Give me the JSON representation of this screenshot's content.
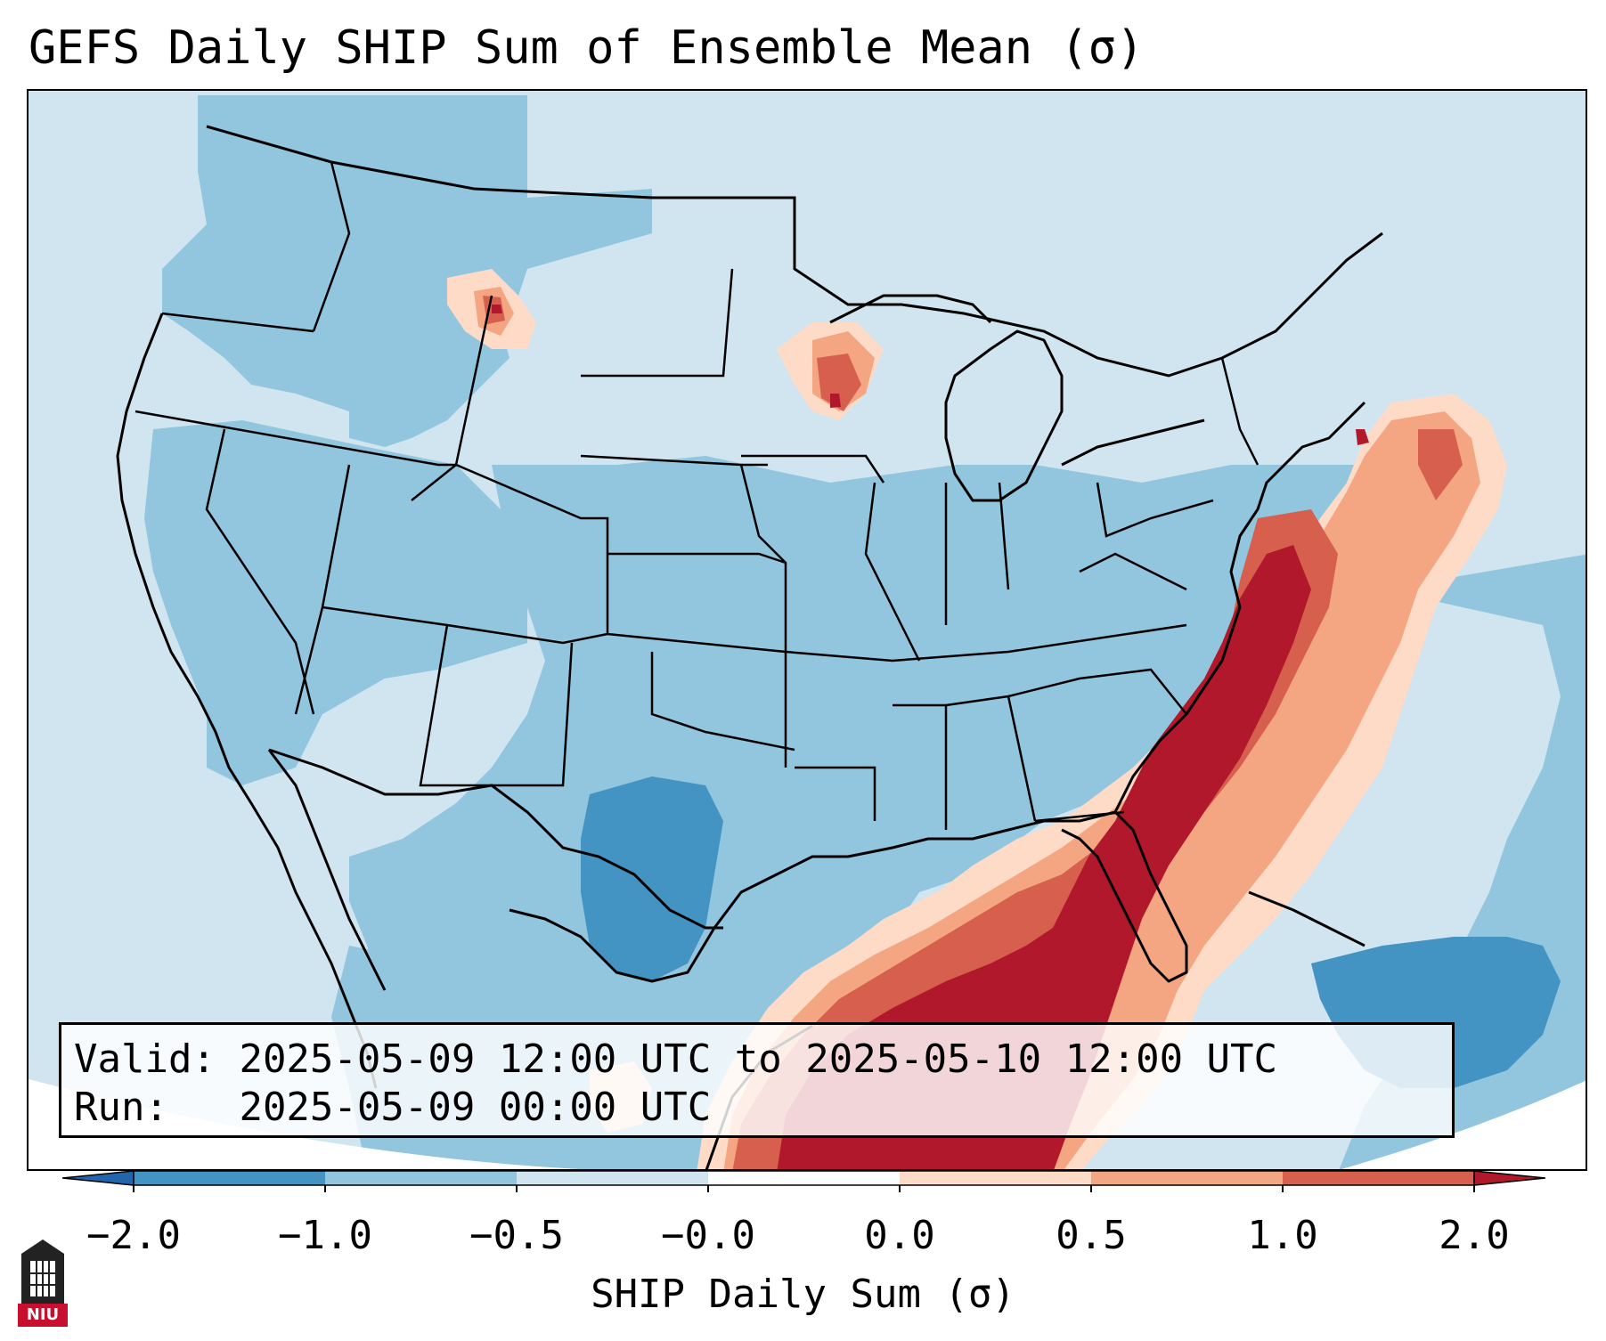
{
  "title": "GEFS Daily SHIP Sum of Ensemble Mean (σ)",
  "info": {
    "valid_label": "Valid:",
    "valid_value": "2025-05-09 12:00 UTC to 2025-05-10 12:00 UTC",
    "run_label": "Run:",
    "run_value": "2025-05-09 00:00 UTC"
  },
  "colorbar": {
    "label": "SHIP Daily Sum (σ)",
    "ticks": [
      "−2.0",
      "−1.0",
      "−0.5",
      "−0.0",
      "0.0",
      "0.5",
      "1.0",
      "2.0"
    ],
    "colors": [
      "#2166ac",
      "#4393c3",
      "#92c5de",
      "#d1e5f0",
      "#ffffff",
      "#fddbc7",
      "#f4a582",
      "#d6604d",
      "#b2182b"
    ],
    "extend": "both"
  },
  "logo": {
    "text": "NIU"
  },
  "map": {
    "projection": "lambert-conformal",
    "region": "CONUS",
    "features": [
      "coastlines",
      "country-borders",
      "state-borders"
    ]
  }
}
